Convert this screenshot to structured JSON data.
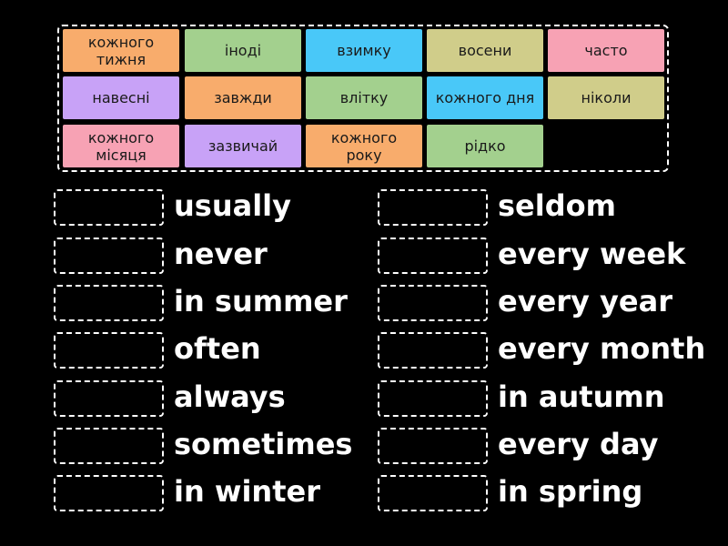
{
  "colors": {
    "orange": "#f8ac6c",
    "green": "#a3d08e",
    "cyan": "#49c8f8",
    "khaki": "#d0cd8a",
    "pink": "#f7a2b4",
    "lavender": "#c8a2f7"
  },
  "tiles": [
    {
      "label": "кожного\nтижня",
      "color": "orange"
    },
    {
      "label": "іноді",
      "color": "green"
    },
    {
      "label": "взимку",
      "color": "cyan"
    },
    {
      "label": "восени",
      "color": "khaki"
    },
    {
      "label": "часто",
      "color": "pink"
    },
    {
      "label": "навесні",
      "color": "lavender"
    },
    {
      "label": "завжди",
      "color": "orange"
    },
    {
      "label": "влітку",
      "color": "green"
    },
    {
      "label": "кожного дня",
      "color": "cyan"
    },
    {
      "label": "ніколи",
      "color": "khaki"
    },
    {
      "label": "кожного\nмісяця",
      "color": "pink"
    },
    {
      "label": "зазвичай",
      "color": "lavender"
    },
    {
      "label": "кожного\nроку",
      "color": "orange"
    },
    {
      "label": "рідко",
      "color": "green"
    }
  ],
  "left_prompts": [
    "usually",
    "never",
    "in summer",
    "often",
    "always",
    "sometimes",
    "in winter"
  ],
  "right_prompts": [
    "seldom",
    "every week",
    "every year",
    "every month",
    "in autumn",
    "every day",
    "in spring"
  ]
}
